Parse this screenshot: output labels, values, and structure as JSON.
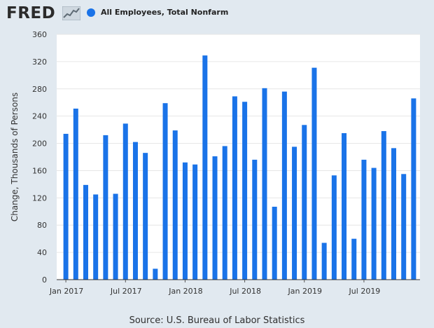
{
  "header": {
    "logo_text": "FRED",
    "logo_icon": "line-chart-icon",
    "legend_label": "All Employees, Total Nonfarm",
    "legend_color": "#1a73e8"
  },
  "source": "Source: U.S. Bureau of Labor Statistics",
  "chart_data": {
    "type": "bar",
    "title": "",
    "xlabel": "",
    "ylabel": "Change, Thousands of Persons",
    "ylim": [
      0,
      360
    ],
    "yticks": [
      0,
      40,
      80,
      120,
      160,
      200,
      240,
      280,
      320,
      360
    ],
    "xtick_labels": [
      {
        "index": 0,
        "label": "Jan 2017"
      },
      {
        "index": 6,
        "label": "Jul 2017"
      },
      {
        "index": 12,
        "label": "Jan 2018"
      },
      {
        "index": 18,
        "label": "Jul 2018"
      },
      {
        "index": 24,
        "label": "Jan 2019"
      },
      {
        "index": 30,
        "label": "Jul 2019"
      }
    ],
    "grid": true,
    "series": [
      {
        "name": "All Employees, Total Nonfarm",
        "color": "#1a73e8",
        "categories": [
          "2017-01",
          "2017-02",
          "2017-03",
          "2017-04",
          "2017-05",
          "2017-06",
          "2017-07",
          "2017-08",
          "2017-09",
          "2017-10",
          "2017-11",
          "2017-12",
          "2018-01",
          "2018-02",
          "2018-03",
          "2018-04",
          "2018-05",
          "2018-06",
          "2018-07",
          "2018-08",
          "2018-09",
          "2018-10",
          "2018-11",
          "2018-12",
          "2019-01",
          "2019-02",
          "2019-03",
          "2019-04",
          "2019-05",
          "2019-06",
          "2019-07",
          "2019-08",
          "2019-09",
          "2019-10",
          "2019-11",
          "2019-12"
        ],
        "values": [
          214,
          251,
          139,
          125,
          212,
          126,
          229,
          202,
          186,
          16,
          259,
          219,
          172,
          169,
          329,
          181,
          196,
          269,
          261,
          176,
          281,
          107,
          276,
          195,
          227,
          311,
          54,
          153,
          215,
          60,
          176,
          164,
          218,
          193,
          155,
          266
        ]
      }
    ]
  }
}
